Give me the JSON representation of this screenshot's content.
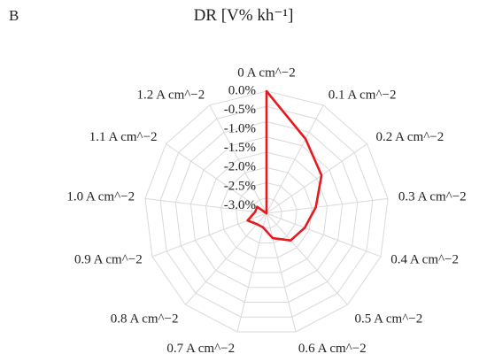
{
  "panel_label": "B",
  "chart_data": {
    "type": "radar",
    "title": "DR [V% kh⁻¹]",
    "categories": [
      "0 A cm^−2",
      "0.1 A cm^−2",
      "0.2 A cm^−2",
      "0.3 A cm^−2",
      "0.4 A cm^−2",
      "0.5 A cm^−2",
      "0.6 A cm^−2",
      "0.7 A cm^−2",
      "0.8 A cm^−2",
      "0.9 A cm^−2",
      "1.0 A cm^−2",
      "1.1 A cm^−2",
      "1.2 A cm^−2"
    ],
    "ticks": [
      "0.0%",
      "-0.5%",
      "-1.0%",
      "-1.5%",
      "-2.0%",
      "-2.5%",
      "-3.0%"
    ],
    "rlim": [
      -3.2,
      0.0
    ],
    "grid": true,
    "series": [
      {
        "color": "#e8191c",
        "values": [
          0.0,
          -1.0,
          -1.45,
          -1.9,
          -2.13,
          -2.25,
          -2.53,
          -2.82,
          -2.82,
          -2.67,
          -2.9,
          -2.9,
          -3.2
        ]
      }
    ]
  }
}
